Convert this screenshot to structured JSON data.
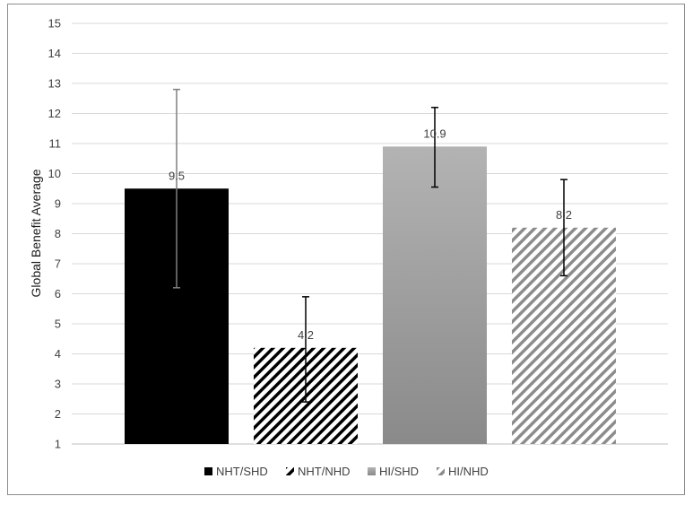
{
  "chart_data": {
    "type": "bar",
    "ylabel": "Global Benefit Average",
    "xlabel": "",
    "ylim": [
      1,
      15
    ],
    "yticks": [
      1,
      2,
      3,
      4,
      5,
      6,
      7,
      8,
      9,
      10,
      11,
      12,
      13,
      14,
      15
    ],
    "grid": true,
    "legend_position": "bottom",
    "series": [
      {
        "name": "NHT/SHD",
        "value": 9.5,
        "label": "9.5",
        "error_low": 6.2,
        "error_high": 12.8,
        "fill": "solid",
        "color": "#000000",
        "error_color": "#7f7f7f"
      },
      {
        "name": "NHT/NHD",
        "value": 4.2,
        "label": "4.2",
        "error_low": 2.4,
        "error_high": 5.9,
        "fill": "hatch",
        "color": "#000000",
        "error_color": "#000000"
      },
      {
        "name": "HI/SHD",
        "value": 10.9,
        "label": "10.9",
        "error_low": 9.55,
        "error_high": 12.2,
        "fill": "gradient",
        "color": "#a6a6a6",
        "error_color": "#000000"
      },
      {
        "name": "HI/NHD",
        "value": 8.2,
        "label": "8.2",
        "error_low": 6.6,
        "error_high": 9.8,
        "fill": "hatch",
        "color": "#8c8c8c",
        "error_color": "#000000"
      }
    ]
  }
}
